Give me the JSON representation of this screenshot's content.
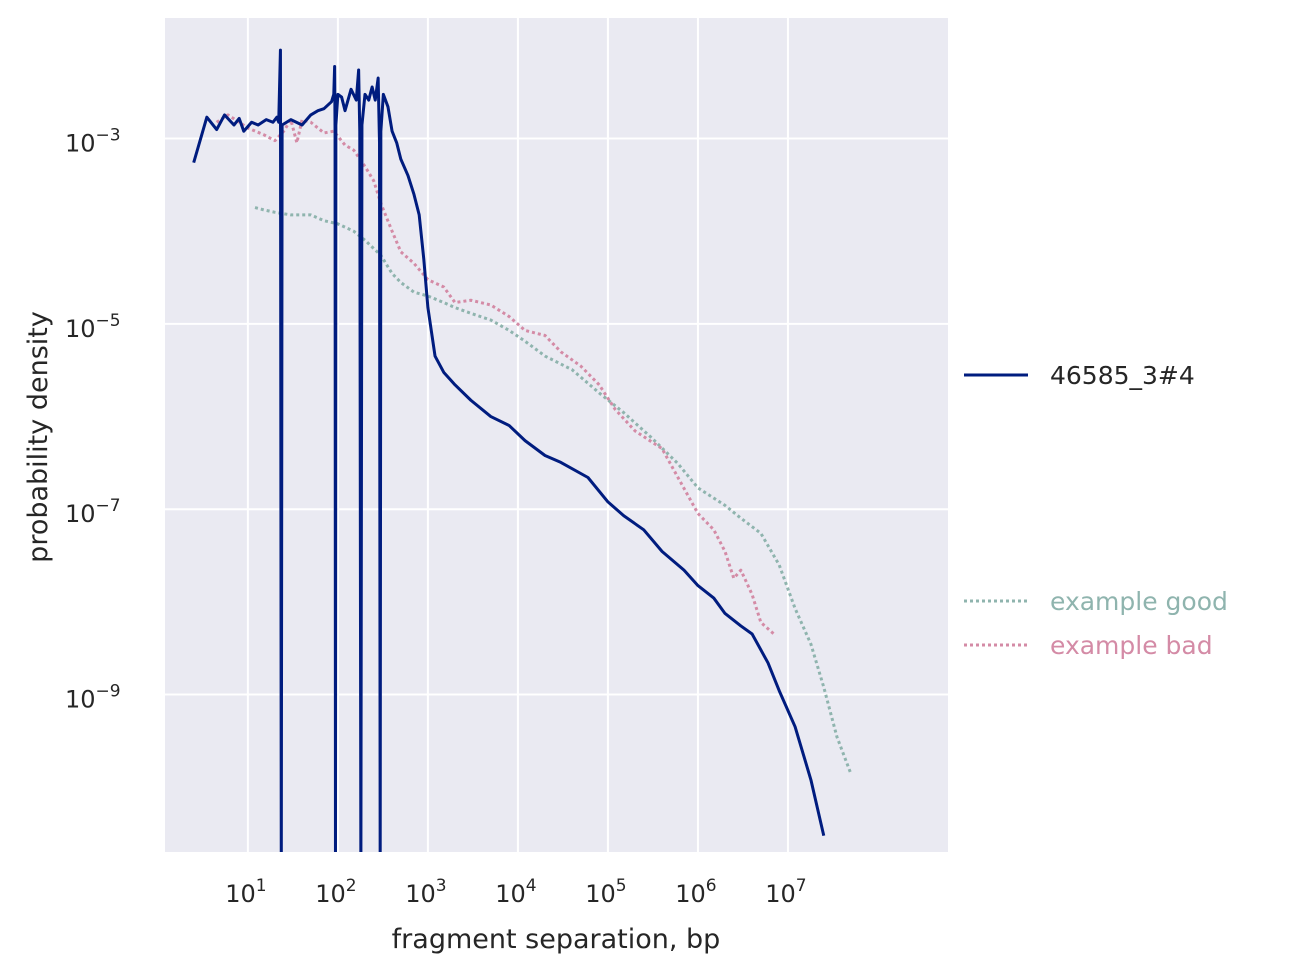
{
  "chart_data": {
    "type": "line",
    "xlabel": "fragment separation, bp",
    "ylabel": "probability density",
    "x_scale": "log",
    "y_scale": "log",
    "xlim": [
      1.2,
      600000000
    ],
    "ylim": [
      2e-11,
      0.02
    ],
    "x_ticks": [
      {
        "value": 10,
        "base": "10",
        "exp": "1"
      },
      {
        "value": 100,
        "base": "10",
        "exp": "2"
      },
      {
        "value": 1000,
        "base": "10",
        "exp": "3"
      },
      {
        "value": 10000,
        "base": "10",
        "exp": "4"
      },
      {
        "value": 100000,
        "base": "10",
        "exp": "5"
      },
      {
        "value": 1000000,
        "base": "10",
        "exp": "6"
      },
      {
        "value": 10000000,
        "base": "10",
        "exp": "7"
      }
    ],
    "y_ticks": [
      {
        "value": 0.001,
        "base": "10",
        "exp": "−3"
      },
      {
        "value": 1e-05,
        "base": "10",
        "exp": "−5"
      },
      {
        "value": 1e-07,
        "base": "10",
        "exp": "−7"
      },
      {
        "value": 1e-09,
        "base": "10",
        "exp": "−9"
      }
    ],
    "grid": true,
    "background": "#EAEAF2",
    "series": [
      {
        "name": "46585_3#4",
        "color": "#001C7F",
        "style": "solid",
        "points": [
          [
            2.5,
            0.00055
          ],
          [
            3.5,
            0.0017
          ],
          [
            4.5,
            0.00125
          ],
          [
            5.5,
            0.0018
          ],
          [
            7,
            0.0014
          ],
          [
            8,
            0.00165
          ],
          [
            9,
            0.0012
          ],
          [
            11,
            0.0015
          ],
          [
            13,
            0.0014
          ],
          [
            16,
            0.0016
          ],
          [
            19,
            0.0015
          ],
          [
            21,
            0.0017
          ],
          [
            22,
            0.0015
          ],
          [
            23,
            0.009
          ],
          [
            23.5,
            1e-11
          ],
          [
            24,
            0.0014
          ],
          [
            30,
            0.0016
          ],
          [
            40,
            0.0014
          ],
          [
            50,
            0.0018
          ],
          [
            60,
            0.002
          ],
          [
            70,
            0.0021
          ],
          [
            85,
            0.0025
          ],
          [
            90,
            0.003
          ],
          [
            92,
            0.006
          ],
          [
            93,
            0.0012
          ],
          [
            94,
            1e-11
          ],
          [
            95,
            0.0014
          ],
          [
            100,
            0.003
          ],
          [
            110,
            0.0028
          ],
          [
            120,
            0.002
          ],
          [
            140,
            0.0034
          ],
          [
            160,
            0.0026
          ],
          [
            170,
            0.0055
          ],
          [
            175,
            0.0012
          ],
          [
            180,
            1e-11
          ],
          [
            185,
            0.0014
          ],
          [
            200,
            0.003
          ],
          [
            220,
            0.0026
          ],
          [
            240,
            0.0036
          ],
          [
            260,
            0.0026
          ],
          [
            280,
            0.0045
          ],
          [
            290,
            0.0009
          ],
          [
            295,
            1e-11
          ],
          [
            300,
            0.0012
          ],
          [
            320,
            0.003
          ],
          [
            360,
            0.0022
          ],
          [
            400,
            0.0012
          ],
          [
            450,
            0.0009
          ],
          [
            500,
            0.0006
          ],
          [
            600,
            0.0004
          ],
          [
            700,
            0.00025
          ],
          [
            800,
            0.00015
          ],
          [
            900,
            5e-05
          ],
          [
            1000,
            1.5e-05
          ],
          [
            1200,
            4.5e-06
          ],
          [
            1500,
            3e-06
          ],
          [
            2000,
            2.2e-06
          ],
          [
            3000,
            1.5e-06
          ],
          [
            5000,
            1e-06
          ],
          [
            8000,
            8e-07
          ],
          [
            12000,
            5.5e-07
          ],
          [
            20000,
            3.8e-07
          ],
          [
            30000,
            3.2e-07
          ],
          [
            60000,
            2.2e-07
          ],
          [
            100000,
            1.2e-07
          ],
          [
            150000,
            8.5e-08
          ],
          [
            250000,
            6e-08
          ],
          [
            400000,
            3.5e-08
          ],
          [
            700000,
            2.2e-08
          ],
          [
            1000000,
            1.5e-08
          ],
          [
            1500000,
            1.1e-08
          ],
          [
            2000000,
            7.5e-09
          ],
          [
            3000000,
            5.5e-09
          ],
          [
            4000000,
            4.5e-09
          ],
          [
            6000000,
            2.2e-09
          ],
          [
            8000000,
            1.1e-09
          ],
          [
            12000000,
            4.5e-10
          ],
          [
            18000000,
            1.2e-10
          ],
          [
            25000000,
            3e-11
          ]
        ]
      },
      {
        "name": "example good",
        "color": "#8FB4AE",
        "style": "dotted",
        "points": [
          [
            12,
            0.00018
          ],
          [
            15,
            0.00017
          ],
          [
            20,
            0.00016
          ],
          [
            30,
            0.00015
          ],
          [
            50,
            0.00015
          ],
          [
            70,
            0.00013
          ],
          [
            100,
            0.00012
          ],
          [
            150,
            0.0001
          ],
          [
            200,
            8e-05
          ],
          [
            300,
            5.5e-05
          ],
          [
            400,
            3.5e-05
          ],
          [
            500,
            2.8e-05
          ],
          [
            700,
            2.2e-05
          ],
          [
            1000,
            2e-05
          ],
          [
            1500,
            1.7e-05
          ],
          [
            2000,
            1.5e-05
          ],
          [
            3000,
            1.3e-05
          ],
          [
            5000,
            1.1e-05
          ],
          [
            8000,
            8.5e-06
          ],
          [
            12000,
            6.5e-06
          ],
          [
            20000,
            4.5e-06
          ],
          [
            40000,
            3.2e-06
          ],
          [
            80000,
            1.8e-06
          ],
          [
            150000,
            1.1e-06
          ],
          [
            300000,
            6e-07
          ],
          [
            600000,
            3.1e-07
          ],
          [
            1000000,
            1.7e-07
          ],
          [
            2000000,
            1.1e-07
          ],
          [
            3000000,
            8e-08
          ],
          [
            5000000,
            5.5e-08
          ],
          [
            8000000,
            2.5e-08
          ],
          [
            12000000,
            8.5e-09
          ],
          [
            18000000,
            3.5e-09
          ],
          [
            25000000,
            1.2e-09
          ],
          [
            35000000,
            3.5e-10
          ],
          [
            50000000,
            1.4e-10
          ]
        ]
      },
      {
        "name": "example bad",
        "color": "#D48BA6",
        "style": "dotted",
        "points": [
          [
            4.5,
            0.0015
          ],
          [
            6,
            0.0018
          ],
          [
            8,
            0.0015
          ],
          [
            10,
            0.0013
          ],
          [
            15,
            0.0011
          ],
          [
            20,
            0.00095
          ],
          [
            25,
            0.0012
          ],
          [
            30,
            0.0016
          ],
          [
            35,
            0.0009
          ],
          [
            40,
            0.0016
          ],
          [
            50,
            0.0015
          ],
          [
            70,
            0.00115
          ],
          [
            90,
            0.0012
          ],
          [
            120,
            0.00085
          ],
          [
            150,
            0.00075
          ],
          [
            200,
            0.0005
          ],
          [
            250,
            0.00035
          ],
          [
            300,
            0.0002
          ],
          [
            400,
            0.0001
          ],
          [
            500,
            6e-05
          ],
          [
            700,
            4.5e-05
          ],
          [
            1000,
            3e-05
          ],
          [
            1500,
            2.5e-05
          ],
          [
            2000,
            1.7e-05
          ],
          [
            3000,
            1.8e-05
          ],
          [
            5000,
            1.6e-05
          ],
          [
            8000,
            1.2e-05
          ],
          [
            12000,
            8.5e-06
          ],
          [
            20000,
            7.5e-06
          ],
          [
            30000,
            5e-06
          ],
          [
            50000,
            3.5e-06
          ],
          [
            80000,
            2.2e-06
          ],
          [
            120000,
            1.2e-06
          ],
          [
            200000,
            7e-07
          ],
          [
            400000,
            4.5e-07
          ],
          [
            600000,
            2.2e-07
          ],
          [
            1000000,
            9e-08
          ],
          [
            1500000,
            6e-08
          ],
          [
            2000000,
            3.5e-08
          ],
          [
            2500000,
            1.8e-08
          ],
          [
            3000000,
            2.2e-08
          ],
          [
            4000000,
            1.2e-08
          ],
          [
            5000000,
            6e-09
          ],
          [
            7000000,
            4.5e-09
          ]
        ]
      }
    ],
    "legends": [
      {
        "placement": "right-middle",
        "entries": [
          {
            "label": "46585_3#4",
            "color": "#001C7F",
            "style": "solid",
            "text_color": "#262626"
          }
        ]
      },
      {
        "placement": "right-lower",
        "entries": [
          {
            "label": "example good",
            "color": "#8FB4AE",
            "style": "dotted",
            "text_color": "#8FB4AE"
          },
          {
            "label": "example bad",
            "color": "#D48BA6",
            "style": "dotted",
            "text_color": "#D48BA6"
          }
        ]
      }
    ]
  }
}
